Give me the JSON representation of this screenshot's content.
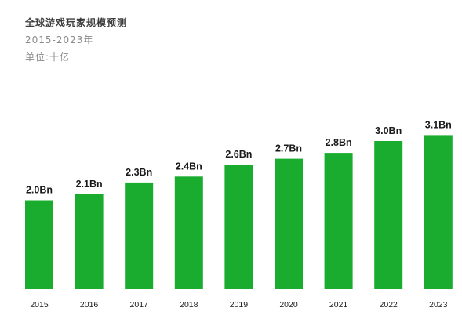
{
  "header": {
    "title": "全球游戏玩家规模预测",
    "subtitle": "2015-2023年",
    "unit": "单位:十亿"
  },
  "colors": {
    "bar": "#1aac2e",
    "text": "#1a1a1a"
  },
  "chart_data": {
    "type": "bar",
    "title": "全球游戏玩家规模预测",
    "subtitle": "2015-2023年",
    "unit": "单位:十亿",
    "categories": [
      "2015",
      "2016",
      "2017",
      "2018",
      "2019",
      "2020",
      "2021",
      "2022",
      "2023"
    ],
    "values": [
      2.0,
      2.1,
      2.3,
      2.4,
      2.6,
      2.7,
      2.8,
      3.0,
      3.1
    ],
    "data_labels": [
      "2.0Bn",
      "2.1Bn",
      "2.3Bn",
      "2.4Bn",
      "2.6Bn",
      "2.7Bn",
      "2.8Bn",
      "3.0Bn",
      "3.1Bn"
    ],
    "xlabel": "",
    "ylabel": "",
    "grid": false,
    "legend": "none"
  }
}
